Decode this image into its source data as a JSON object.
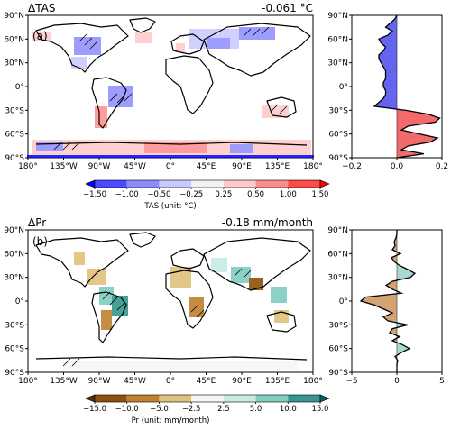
{
  "panel_a": {
    "title": "ΔTAS",
    "mean": "-0.061 °C",
    "label": "(a)",
    "colorbar_label": "TAS (unit: °C)",
    "colorbar_ticks": [
      "−1.50",
      "−1.00",
      "−0.50",
      "−0.25",
      "0.25",
      "0.50",
      "1.00",
      "1.50"
    ],
    "colorbar_colors": [
      "#0000ff",
      "#4a4aff",
      "#8c8cff",
      "#c8c8ff",
      "#f2f2f2",
      "#ffc8c8",
      "#ff8c8c",
      "#ff4a4a",
      "#ff0000"
    ]
  },
  "panel_b": {
    "title": "ΔPr",
    "mean": "-0.18 mm/month",
    "label": "(b)",
    "colorbar_label": "Pr (unit: mm/month)",
    "colorbar_ticks": [
      "−15.0",
      "−10.0",
      "−5.0",
      "−2.5",
      "2.5",
      "5.0",
      "10.0",
      "15.0"
    ],
    "colorbar_colors": [
      "#543005",
      "#8c510a",
      "#bf812d",
      "#dfc27d",
      "#f5f5f5",
      "#c7eae5",
      "#80cdc1",
      "#35978f",
      "#01665e"
    ]
  },
  "map_x_ticks": [
    "180°",
    "135°W",
    "90°W",
    "45°W",
    "0°",
    "45°E",
    "90°E",
    "135°E",
    "180°"
  ],
  "lat_ticks": [
    "90°N",
    "60°N",
    "30°N",
    "0°",
    "30°S",
    "60°S",
    "90°S"
  ],
  "chart_data": [
    {
      "type": "line",
      "title": "",
      "xlabel": "",
      "ylabel": "",
      "xlim": [
        -0.2,
        0.2
      ],
      "ylim": [
        -90,
        90
      ],
      "x_ticks": [
        "−0.2",
        "0.0",
        "0.2"
      ],
      "series": [
        {
          "lat": [
            90,
            85,
            80,
            75,
            70,
            65,
            60,
            55,
            50,
            45,
            40,
            35,
            30,
            25,
            20,
            15,
            10,
            5,
            0,
            -5,
            -10,
            -15,
            -20,
            -25,
            -30,
            -35,
            -40,
            -45,
            -50,
            -55,
            -60,
            -65,
            -70,
            -75,
            -80,
            -85,
            -90
          ],
          "values": [
            0,
            -0.01,
            -0.03,
            -0.05,
            -0.02,
            -0.04,
            -0.08,
            -0.07,
            -0.05,
            -0.06,
            -0.08,
            -0.08,
            -0.07,
            -0.06,
            -0.05,
            -0.05,
            -0.05,
            -0.06,
            -0.06,
            -0.05,
            -0.05,
            -0.06,
            -0.08,
            -0.1,
            0.04,
            0.14,
            0.19,
            0.17,
            0.05,
            0.02,
            0.1,
            0.18,
            0.15,
            0.05,
            0.02,
            0.12,
            0
          ]
        }
      ],
      "positive_fill": "#f26a6a",
      "negative_fill": "#6464f0"
    },
    {
      "type": "line",
      "title": "",
      "xlabel": "",
      "ylabel": "",
      "xlim": [
        -5,
        5
      ],
      "ylim": [
        -90,
        90
      ],
      "x_ticks": [
        "−5",
        "0",
        "5"
      ],
      "series": [
        {
          "lat": [
            90,
            85,
            80,
            75,
            70,
            65,
            60,
            55,
            50,
            45,
            40,
            35,
            30,
            25,
            20,
            15,
            10,
            5,
            0,
            -5,
            -10,
            -15,
            -20,
            -25,
            -30,
            -35,
            -40,
            -45,
            -50,
            -55,
            -60,
            -65,
            -70,
            -75,
            -80,
            -85,
            -90
          ],
          "values": [
            0,
            0,
            -0.1,
            -0.3,
            -0.2,
            -0.5,
            0.4,
            -0.6,
            -0.3,
            0.3,
            1.2,
            2.0,
            1.5,
            -0.5,
            -1.2,
            -0.5,
            0.5,
            -3.5,
            -4.0,
            -2.5,
            -1.5,
            -0.5,
            -1.5,
            -1.0,
            1.2,
            -0.5,
            -0.8,
            0.3,
            -0.5,
            0.6,
            1.4,
            0.5,
            -0.2,
            0.1,
            0,
            0,
            0
          ]
        }
      ],
      "positive_fill": "#a8dad1",
      "negative_fill": "#d4a373"
    }
  ]
}
